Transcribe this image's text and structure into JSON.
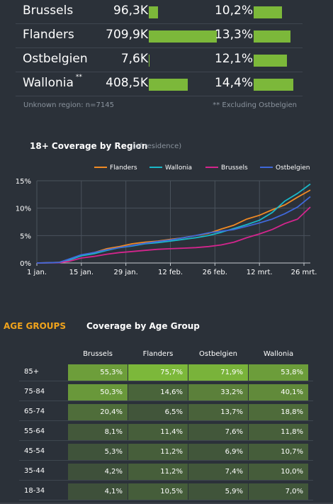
{
  "regions": [
    {
      "name": "Brussels",
      "sup": "",
      "count": "96,3K",
      "count_value": 96.3,
      "pct": "10,2%",
      "pct_value": 10.2
    },
    {
      "name": "Flanders",
      "sup": "",
      "count": "709,9K",
      "count_value": 709.9,
      "pct": "13,3%",
      "pct_value": 13.3
    },
    {
      "name": "Ostbelgien",
      "sup": "",
      "count": "7,6K",
      "count_value": 7.6,
      "pct": "12,1%",
      "pct_value": 12.1
    },
    {
      "name": "Wallonia",
      "sup": "**",
      "count": "408,5K",
      "count_value": 408.5,
      "pct": "14,4%",
      "pct_value": 14.4
    }
  ],
  "footnotes": {
    "unknown": "Unknown region: n=7145",
    "excluding": "** Excluding Ostbelgien"
  },
  "coverage_chart": {
    "title": "18+ Coverage by Region",
    "subtitle": "(of residence)"
  },
  "chart_data": {
    "type": "line",
    "title": "18+ Coverage by Region",
    "subtitle": "(of residence)",
    "x_ticks": [
      "1 jan.",
      "15 jan.",
      "29 jan.",
      "12 feb.",
      "26 feb.",
      "12 mrt.",
      "26 mrt."
    ],
    "x_tick_days": [
      0,
      14,
      28,
      42,
      56,
      70,
      84
    ],
    "y_ticks": [
      "0%",
      "5%",
      "10%",
      "15%"
    ],
    "ylim": [
      0,
      15
    ],
    "xlim_days": [
      0,
      86
    ],
    "legend_position": "top-right",
    "series": [
      {
        "name": "Flanders",
        "color": "#f08a24",
        "x": [
          0,
          7,
          10,
          14,
          18,
          22,
          26,
          30,
          34,
          38,
          42,
          46,
          50,
          54,
          58,
          62,
          66,
          70,
          74,
          78,
          82,
          86
        ],
        "y": [
          0,
          0.1,
          0.6,
          1.4,
          1.9,
          2.6,
          3.0,
          3.5,
          3.8,
          4.0,
          4.3,
          4.6,
          5.0,
          5.4,
          6.2,
          6.9,
          8.0,
          8.7,
          9.7,
          10.6,
          12.0,
          13.3
        ]
      },
      {
        "name": "Wallonia",
        "color": "#1ab8c8",
        "x": [
          0,
          7,
          10,
          14,
          18,
          22,
          26,
          30,
          34,
          38,
          42,
          46,
          50,
          54,
          58,
          62,
          66,
          70,
          74,
          78,
          82,
          86
        ],
        "y": [
          0,
          0.05,
          0.5,
          1.3,
          1.7,
          2.3,
          2.8,
          3.1,
          3.5,
          3.7,
          4.0,
          4.3,
          4.6,
          5.0,
          5.6,
          6.3,
          7.0,
          7.8,
          9.2,
          11.3,
          12.7,
          14.4
        ]
      },
      {
        "name": "Brussels",
        "color": "#d4258d",
        "x": [
          0,
          7,
          10,
          14,
          18,
          22,
          26,
          30,
          34,
          38,
          42,
          46,
          50,
          54,
          58,
          62,
          66,
          70,
          74,
          78,
          82,
          86
        ],
        "y": [
          0,
          0.05,
          0.3,
          0.9,
          1.2,
          1.6,
          1.9,
          2.1,
          2.3,
          2.5,
          2.6,
          2.7,
          2.8,
          3.0,
          3.3,
          3.8,
          4.6,
          5.3,
          6.1,
          7.2,
          8.0,
          10.2
        ]
      },
      {
        "name": "Ostbelgien",
        "color": "#3f68d9",
        "x": [
          0,
          7,
          10,
          14,
          18,
          22,
          26,
          30,
          34,
          38,
          42,
          46,
          50,
          54,
          58,
          62,
          66,
          70,
          74,
          78,
          82,
          86
        ],
        "y": [
          0,
          0.1,
          0.7,
          1.5,
          1.9,
          2.4,
          2.8,
          3.2,
          3.6,
          3.9,
          4.2,
          4.6,
          5.0,
          5.5,
          5.8,
          6.1,
          6.7,
          7.3,
          8.0,
          9.0,
          10.2,
          12.1
        ]
      }
    ]
  },
  "age_groups": {
    "heading": "AGE GROUPS",
    "title": "Coverage by Age Group",
    "columns": [
      "Brussels",
      "Flanders",
      "Ostbelgien",
      "Wallonia"
    ],
    "rows": [
      {
        "age": "85+",
        "values": [
          "55,3%",
          "75,7%",
          "71,9%",
          "53,8%"
        ],
        "nums": [
          55.3,
          75.7,
          71.9,
          53.8
        ]
      },
      {
        "age": "75-84",
        "values": [
          "50,3%",
          "14,6%",
          "33,2%",
          "40,1%"
        ],
        "nums": [
          50.3,
          14.6,
          33.2,
          40.1
        ]
      },
      {
        "age": "65-74",
        "values": [
          "20,4%",
          "6,5%",
          "13,7%",
          "18,8%"
        ],
        "nums": [
          20.4,
          6.5,
          13.7,
          18.8
        ]
      },
      {
        "age": "55-64",
        "values": [
          "8,1%",
          "11,4%",
          "7,6%",
          "11,8%"
        ],
        "nums": [
          8.1,
          11.4,
          7.6,
          11.8
        ]
      },
      {
        "age": "45-54",
        "values": [
          "5,3%",
          "11,2%",
          "6,9%",
          "10,7%"
        ],
        "nums": [
          5.3,
          11.2,
          6.9,
          10.7
        ]
      },
      {
        "age": "35-44",
        "values": [
          "4,2%",
          "11,2%",
          "7,4%",
          "10,0%"
        ],
        "nums": [
          4.2,
          11.2,
          7.4,
          10.0
        ]
      },
      {
        "age": "18-34",
        "values": [
          "4,1%",
          "10,5%",
          "5,9%",
          "7,0%"
        ],
        "nums": [
          4.1,
          10.5,
          5.9,
          7.0
        ]
      }
    ]
  },
  "colors": {
    "background": "#2b3139",
    "bar": "#7cb83a",
    "accent": "#f0a31c",
    "heat_low": "#37453a",
    "heat_high": "#7cb83a"
  }
}
